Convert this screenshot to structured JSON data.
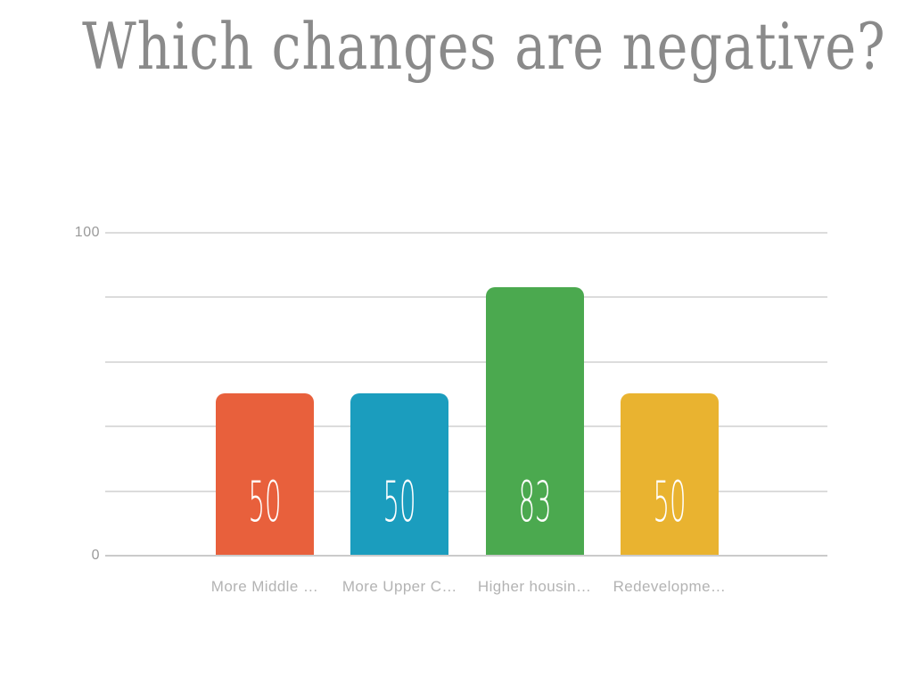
{
  "slide": {
    "background_color": "#ffffff"
  },
  "chart_data": {
    "type": "bar",
    "title": "Which changes are negative?",
    "title_color": "#8a8a8a",
    "categories": [
      "More Middle …",
      "More Upper C…",
      "Higher housin…",
      "Redevelopme…"
    ],
    "values": [
      50,
      50,
      83,
      50
    ],
    "value_labels": [
      "50",
      "50",
      "83",
      "50"
    ],
    "bar_colors": [
      "#e8603c",
      "#1b9dbe",
      "#4ba94f",
      "#e9b330"
    ],
    "value_label_color": "#ffffff",
    "xlabel": "",
    "ylabel": "",
    "ylim": [
      0,
      100
    ],
    "gridlines_at": [
      100,
      80,
      60,
      40,
      20,
      0
    ],
    "yticks": [
      {
        "label": "100",
        "value": 100
      },
      {
        "label": "0",
        "value": 0
      }
    ],
    "grid": true,
    "legend": "none",
    "gridline_color": "#dcdcdc",
    "axis_tick_color": "#9a9a9a",
    "category_label_color": "#b3b3b3"
  }
}
